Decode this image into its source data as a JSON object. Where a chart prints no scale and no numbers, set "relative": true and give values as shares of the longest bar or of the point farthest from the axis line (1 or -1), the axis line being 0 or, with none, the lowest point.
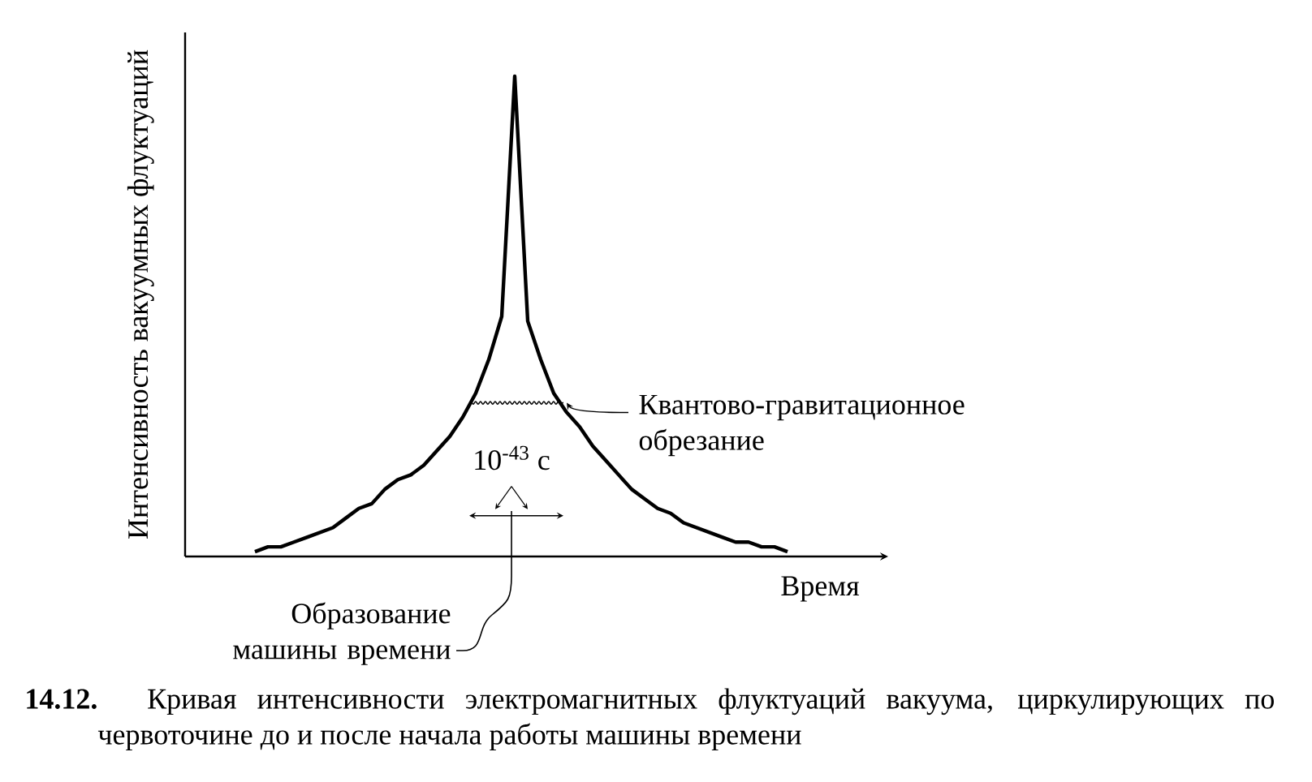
{
  "chart_data": {
    "type": "line",
    "relative": true,
    "color": "#000000",
    "xlabel": "Время",
    "ylabel": "Интенсивность вакуумных флуктуаций",
    "categories": [
      null,
      null,
      null,
      null,
      null,
      null,
      null,
      null,
      null,
      null,
      null,
      null,
      null,
      null,
      null,
      null,
      null,
      null,
      null,
      null,
      null,
      null,
      null,
      null,
      null,
      null,
      null,
      null,
      null,
      null,
      null,
      null,
      null,
      null,
      null,
      null,
      null,
      null,
      null,
      null,
      null,
      null
    ],
    "values": [
      0.01,
      0.02,
      0.02,
      0.03,
      0.04,
      0.05,
      0.06,
      0.08,
      0.1,
      0.11,
      0.14,
      0.16,
      0.17,
      0.19,
      0.22,
      0.25,
      0.29,
      0.34,
      0.41,
      0.5,
      1,
      0.49,
      0.41,
      0.34,
      0.3,
      0.27,
      0.23,
      0.2,
      0.17,
      0.14,
      0.12,
      0.1,
      0.09,
      0.07,
      0.06,
      0.05,
      0.04,
      0.03,
      0.03,
      0.02,
      0.02,
      0.01
    ],
    "annotations": [
      "Квантово-гравитационное обрезание",
      "10$^{-43}$ с",
      "Образование машины времени",
      "**14.12.** Кривая интенсивности электромагнитных флуктуаций вакуума, циркулирующих по червоточине до и после начала работы машины времени"
    ]
  }
}
